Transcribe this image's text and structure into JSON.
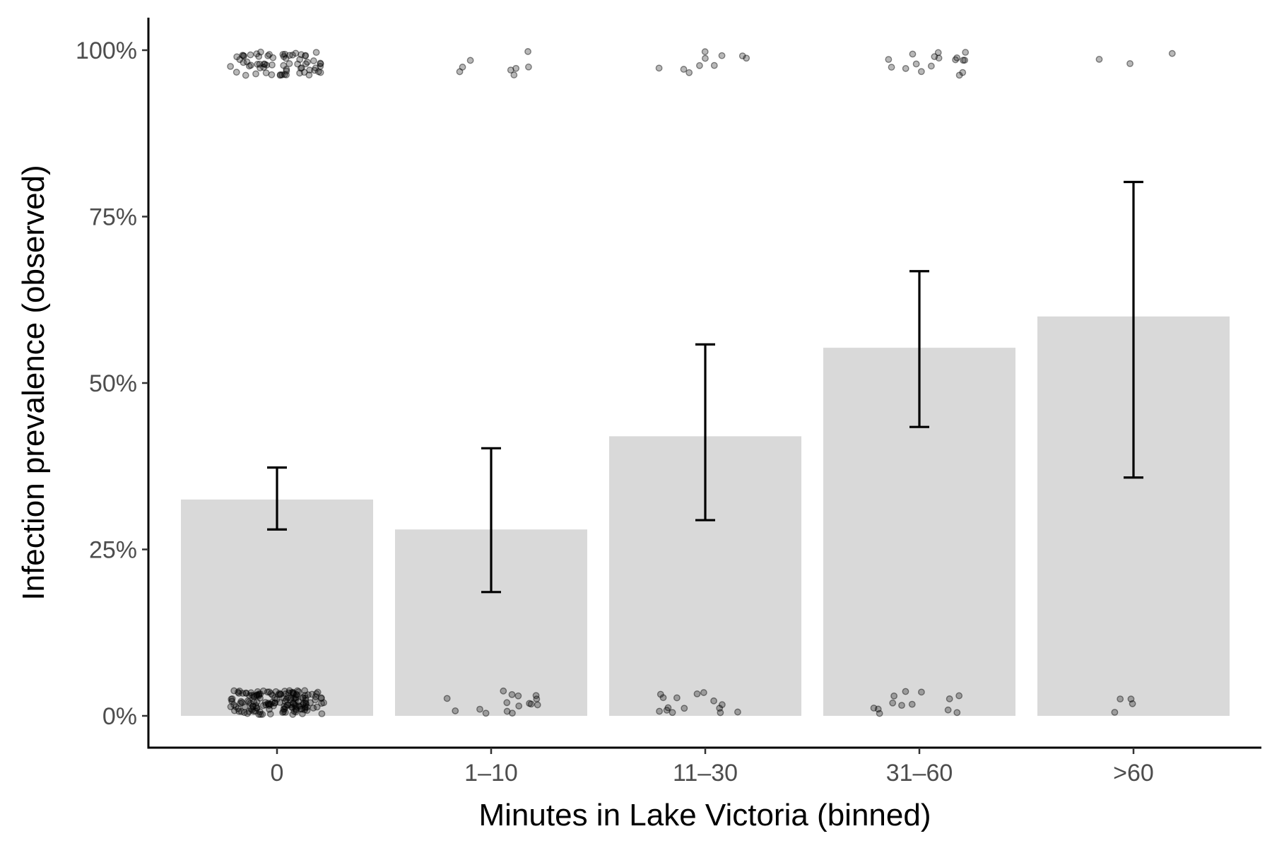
{
  "chart_data": {
    "type": "bar",
    "xlabel": "Minutes in Lake Victoria (binned)",
    "ylabel": "Infection prevalence (observed)",
    "categories": [
      "0",
      "1–10",
      "11–30",
      "31–60",
      ">60"
    ],
    "ylim": [
      -0.05,
      1.05
    ],
    "yticks": [
      {
        "value": 0,
        "label": "0%"
      },
      {
        "value": 0.25,
        "label": "25%"
      },
      {
        "value": 0.5,
        "label": "50%"
      },
      {
        "value": 0.75,
        "label": "75%"
      },
      {
        "value": 1,
        "label": "100%"
      }
    ],
    "series": [
      {
        "values": [
          0.325,
          0.28,
          0.42,
          0.553,
          0.6
        ],
        "error_low": [
          0.28,
          0.186,
          0.294,
          0.434,
          0.358
        ],
        "error_high": [
          0.373,
          0.402,
          0.558,
          0.668,
          0.802
        ],
        "points_at_zero": [
          160,
          16,
          15,
          13,
          4
        ],
        "points_at_one": [
          68,
          8,
          10,
          17,
          3
        ]
      }
    ],
    "colors": {
      "bar": "#d9d9d9",
      "error_bar": "#000000",
      "point": "#000000",
      "axis": "#000000"
    },
    "grid": false,
    "legend": "none"
  }
}
